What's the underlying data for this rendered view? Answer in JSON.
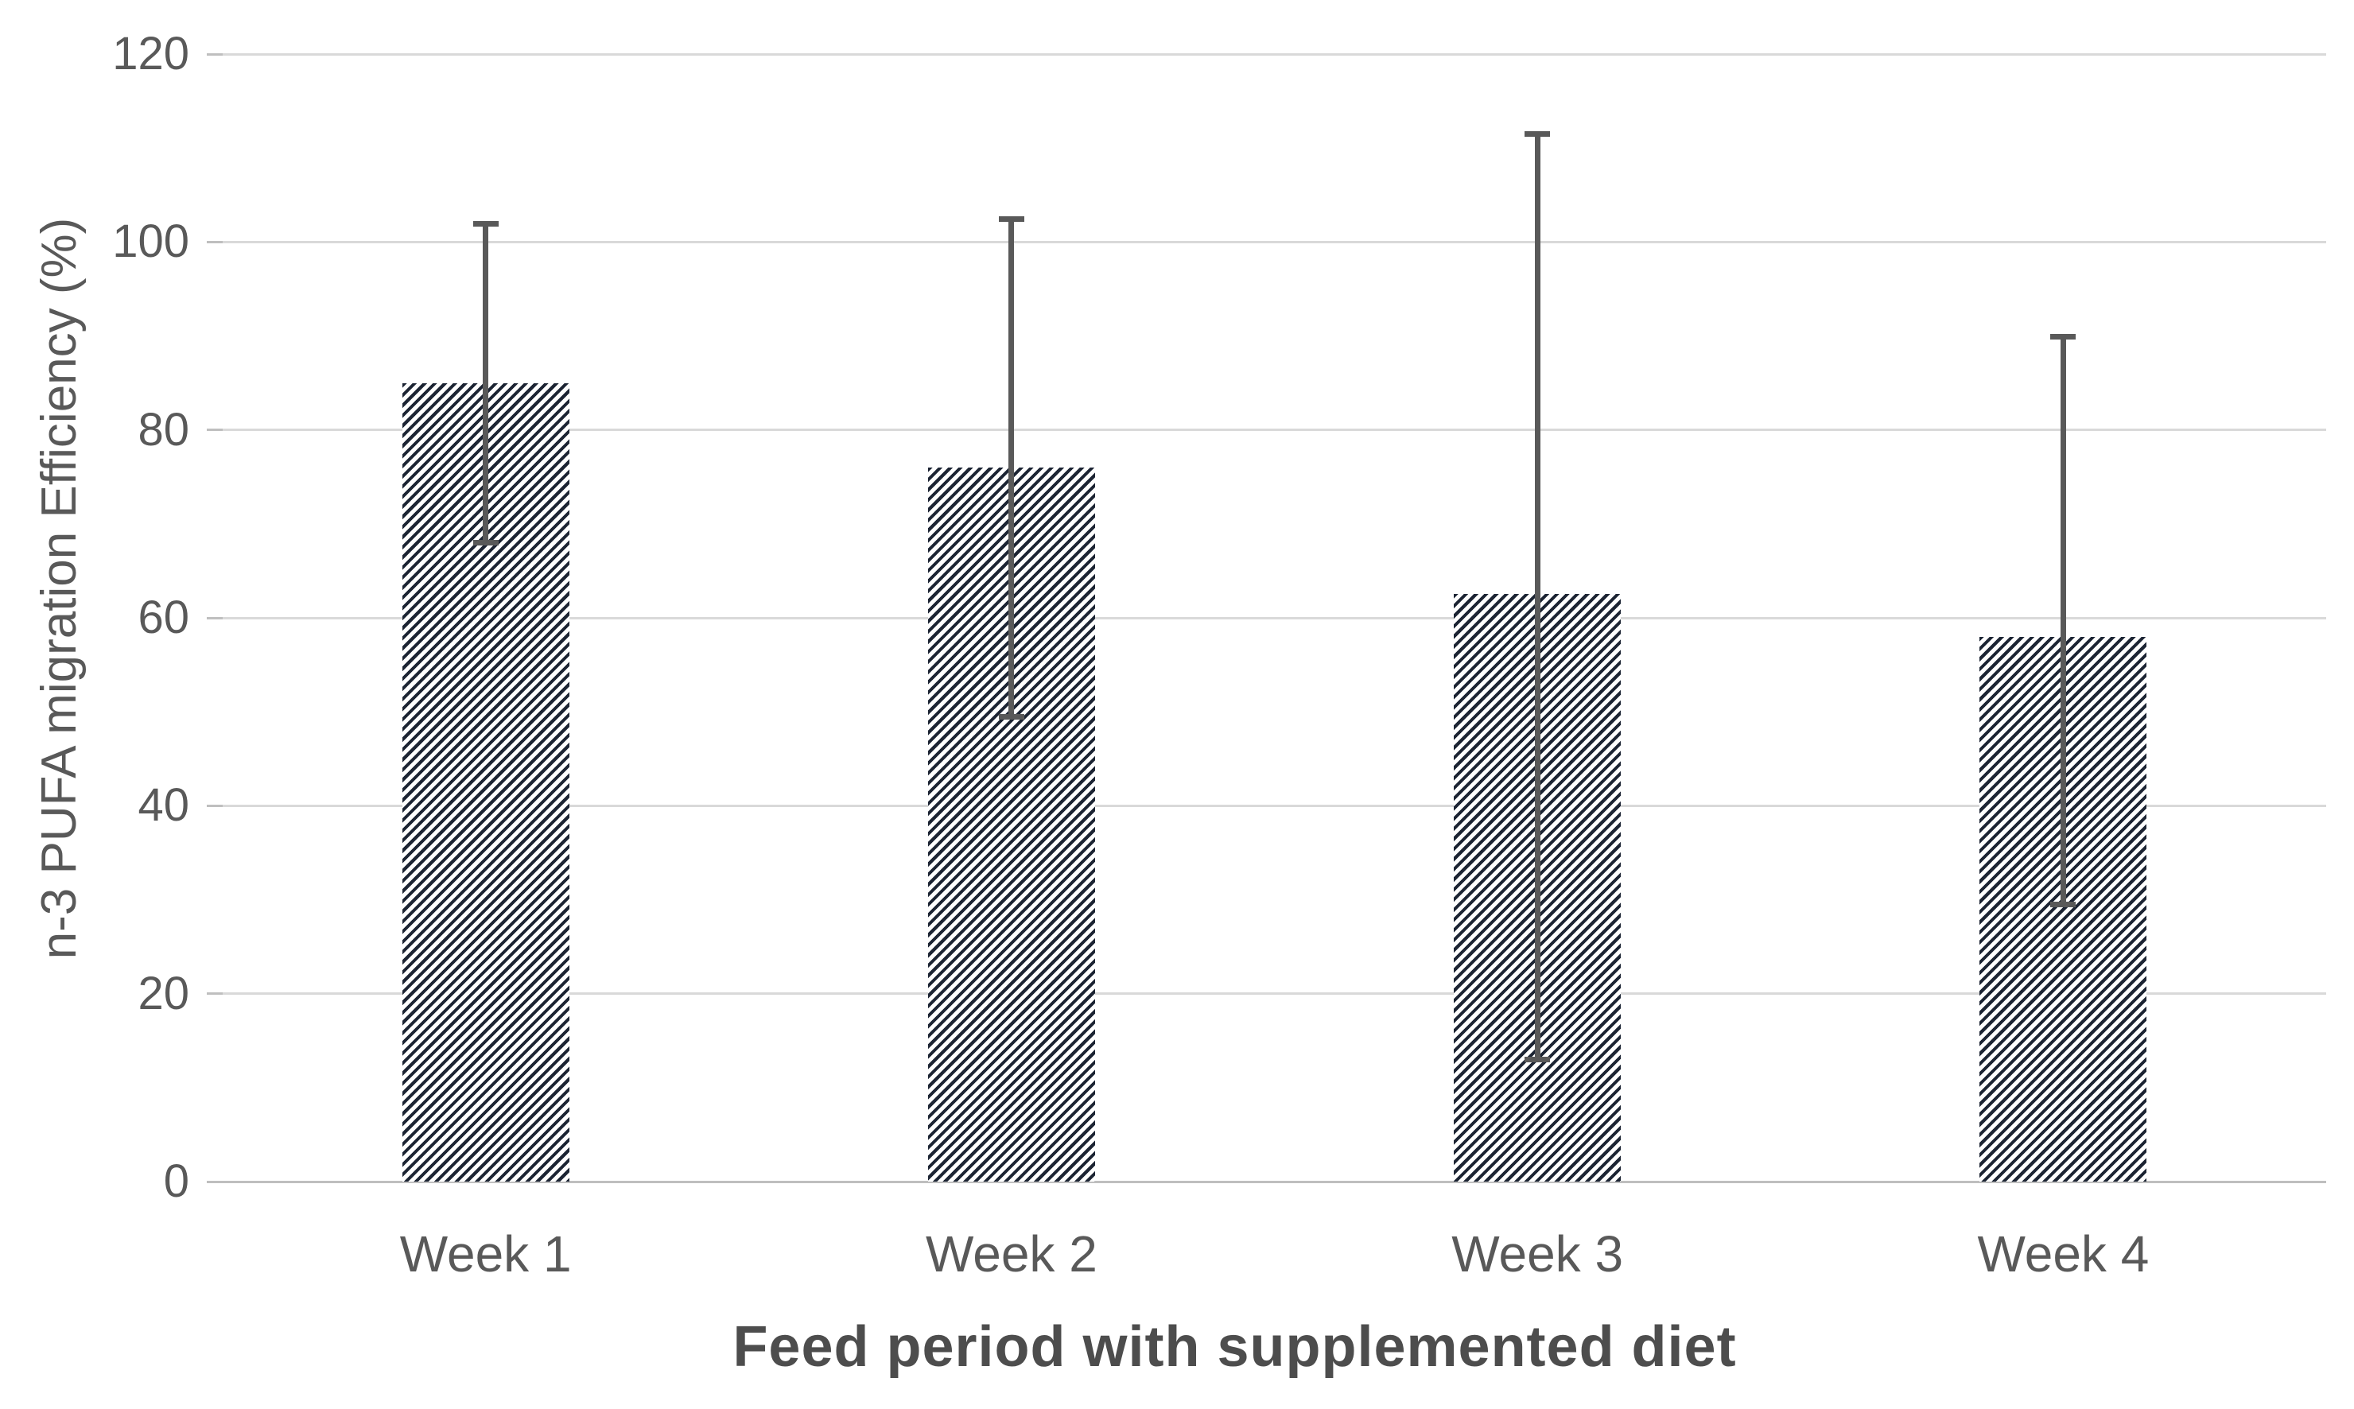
{
  "chart_data": {
    "type": "bar",
    "title": "",
    "categories": [
      "Week 1",
      "Week 2",
      "Week 3",
      "Week 4"
    ],
    "values": [
      85,
      76,
      62.5,
      58
    ],
    "error_low": [
      68,
      49.5,
      13,
      29.5
    ],
    "error_high": [
      102,
      102.5,
      111.5,
      90
    ],
    "xlabel": "Feed period with supplemented diet",
    "ylabel": "n-3 PUFA migration Efficiency (%)",
    "ylim": [
      0,
      120
    ],
    "yticks": [
      0,
      20,
      40,
      60,
      80,
      100,
      120
    ],
    "grid": true,
    "legend": false,
    "bar_style": "diagonal-hatch"
  },
  "colors": {
    "hatch": "#1c2433",
    "gridline": "#d9d9d9",
    "baseline": "#bfbfbf",
    "tick": "#bfbfbf",
    "error_bar": "#595959",
    "axis_text": "#595959",
    "title_text": "#4d4d4d",
    "background": "#ffffff"
  }
}
